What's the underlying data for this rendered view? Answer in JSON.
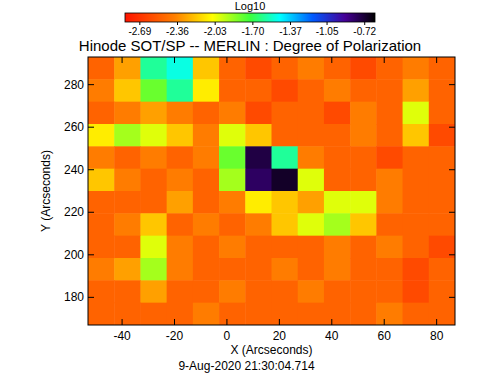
{
  "chart_data": {
    "type": "heatmap",
    "title": "Hinode SOT/SP -- MERLIN : Degree of Polarization",
    "x_label": "X (Arcseconds)",
    "y_label": "Y (Arcseconds)",
    "date": "9-Aug-2020 21:30:04.714",
    "xlim": [
      -53,
      87
    ],
    "ylim": [
      167,
      293
    ],
    "xticks": [
      -40,
      -20,
      0,
      20,
      40,
      60,
      80
    ],
    "yticks": [
      180,
      200,
      220,
      240,
      260,
      280
    ],
    "x": [
      -48,
      -38,
      -28,
      -18,
      -8,
      2,
      12,
      22,
      32,
      42,
      52,
      62,
      72,
      82
    ],
    "y": [
      287.75,
      277.25,
      266.75,
      256.25,
      245.75,
      235.25,
      224.75,
      214.25,
      203.75,
      193.25,
      182.75,
      172.25
    ],
    "z": [
      [
        -2.5,
        -2.3,
        -1.6,
        -1.5,
        -2.2,
        -2.5,
        -2.6,
        -2.5,
        -2.4,
        -2.5,
        -2.6,
        -2.5,
        -2.4,
        -2.5
      ],
      [
        -2.4,
        -2.2,
        -1.8,
        -1.6,
        -2.1,
        -2.5,
        -2.5,
        -2.6,
        -2.5,
        -2.4,
        -2.5,
        -2.5,
        -2.3,
        -2.5
      ],
      [
        -2.5,
        -2.4,
        -2.3,
        -2.4,
        -2.5,
        -2.4,
        -2.6,
        -2.5,
        -2.5,
        -2.6,
        -2.4,
        -2.5,
        -2.0,
        -2.5
      ],
      [
        -2.1,
        -1.9,
        -2.0,
        -2.2,
        -2.4,
        -2.0,
        -2.2,
        -2.5,
        -2.5,
        -2.5,
        -2.4,
        -2.5,
        -2.2,
        -2.6
      ],
      [
        -2.4,
        -2.5,
        -2.4,
        -2.5,
        -2.4,
        -1.8,
        -0.75,
        -1.6,
        -2.4,
        -2.5,
        -2.5,
        -2.6,
        -2.5,
        -2.5
      ],
      [
        -2.2,
        -2.4,
        -2.5,
        -2.4,
        -2.5,
        -1.9,
        -0.8,
        -0.7,
        -2.0,
        -2.5,
        -2.5,
        -2.4,
        -2.5,
        -2.5
      ],
      [
        -2.5,
        -2.5,
        -2.5,
        -2.3,
        -2.5,
        -2.4,
        -2.1,
        -2.2,
        -2.3,
        -2.0,
        -2.0,
        -2.4,
        -2.5,
        -2.5
      ],
      [
        -2.5,
        -2.4,
        -2.2,
        -2.5,
        -2.4,
        -2.5,
        -2.4,
        -2.2,
        -2.0,
        -1.9,
        -2.2,
        -2.5,
        -2.5,
        -2.5
      ],
      [
        -2.5,
        -2.5,
        -2.0,
        -2.4,
        -2.5,
        -2.4,
        -2.5,
        -2.5,
        -2.5,
        -2.4,
        -2.5,
        -2.4,
        -2.5,
        -2.6
      ],
      [
        -2.4,
        -2.3,
        -1.9,
        -2.4,
        -2.5,
        -2.5,
        -2.5,
        -2.4,
        -2.5,
        -2.4,
        -2.5,
        -2.5,
        -2.6,
        -2.5
      ],
      [
        -2.5,
        -2.5,
        -2.3,
        -2.5,
        -2.5,
        -2.4,
        -2.5,
        -2.5,
        -2.4,
        -2.5,
        -2.5,
        -2.5,
        -2.6,
        -2.5
      ],
      [
        -2.5,
        -2.5,
        -2.5,
        -2.5,
        -2.4,
        -2.5,
        -2.5,
        -2.5,
        -2.5,
        -2.5,
        -2.5,
        -2.4,
        -2.5,
        -2.5
      ]
    ],
    "colorbar": {
      "title": "Log10",
      "range": [
        -2.82,
        -0.63
      ],
      "ticks": [
        -2.69,
        -2.36,
        -2.03,
        {
          "value": -1.7,
          "label": "-1.70"
        },
        -1.37,
        -1.05,
        -0.72
      ]
    }
  }
}
